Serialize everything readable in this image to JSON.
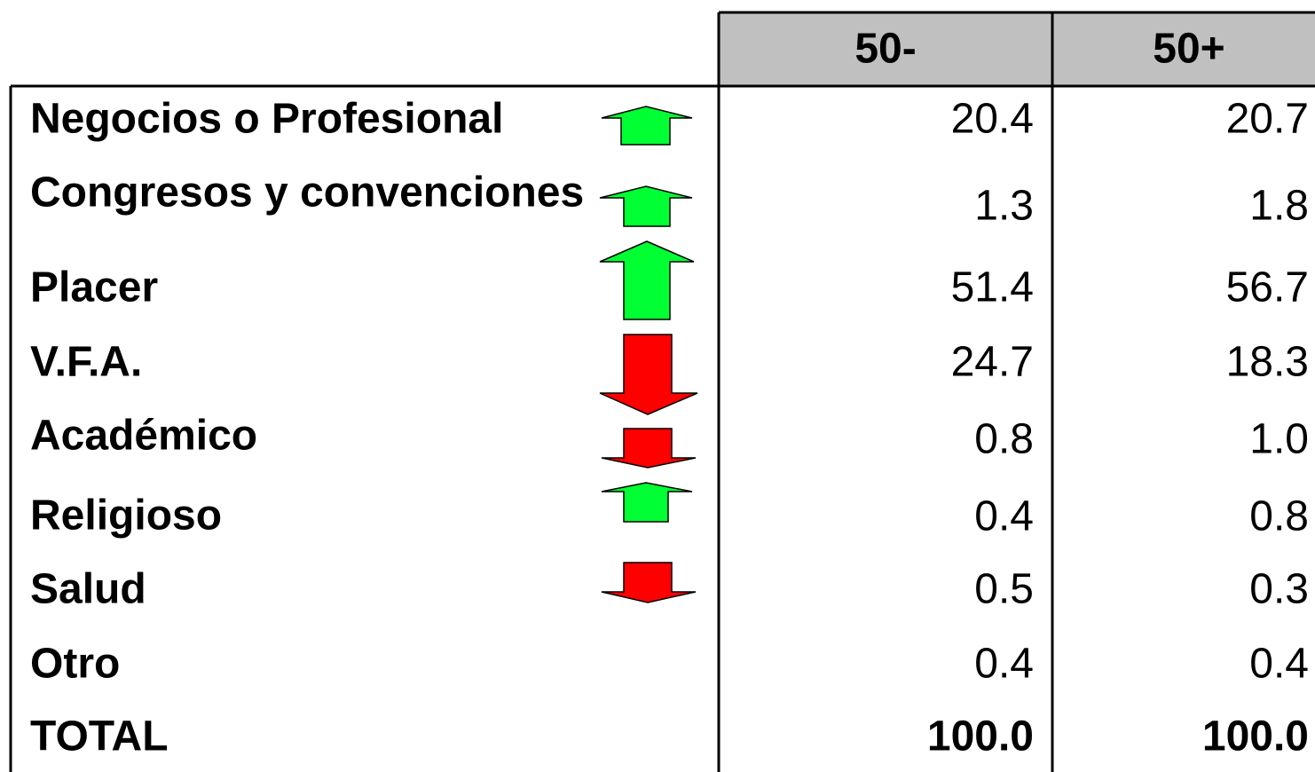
{
  "table": {
    "columns": [
      "50-",
      "50+"
    ],
    "rows": [
      {
        "label": "Negocios o Profesional",
        "values": [
          "20.4",
          "20.7"
        ]
      },
      {
        "label": "Congresos y convenciones",
        "values": [
          "1.3",
          "1.8"
        ]
      },
      {
        "label": "Placer",
        "values": [
          "51.4",
          "56.7"
        ]
      },
      {
        "label": "V.F.A.",
        "values": [
          "24.7",
          "18.3"
        ]
      },
      {
        "label": "Académico",
        "values": [
          "0.8",
          "1.0"
        ]
      },
      {
        "label": "Religioso",
        "values": [
          "0.4",
          "0.8"
        ]
      },
      {
        "label": "Salud",
        "values": [
          "0.5",
          "0.3"
        ]
      },
      {
        "label": "Otro",
        "values": [
          "0.4",
          "0.4"
        ]
      },
      {
        "label": "TOTAL",
        "values": [
          "100.0",
          "100.0"
        ]
      }
    ]
  }
}
